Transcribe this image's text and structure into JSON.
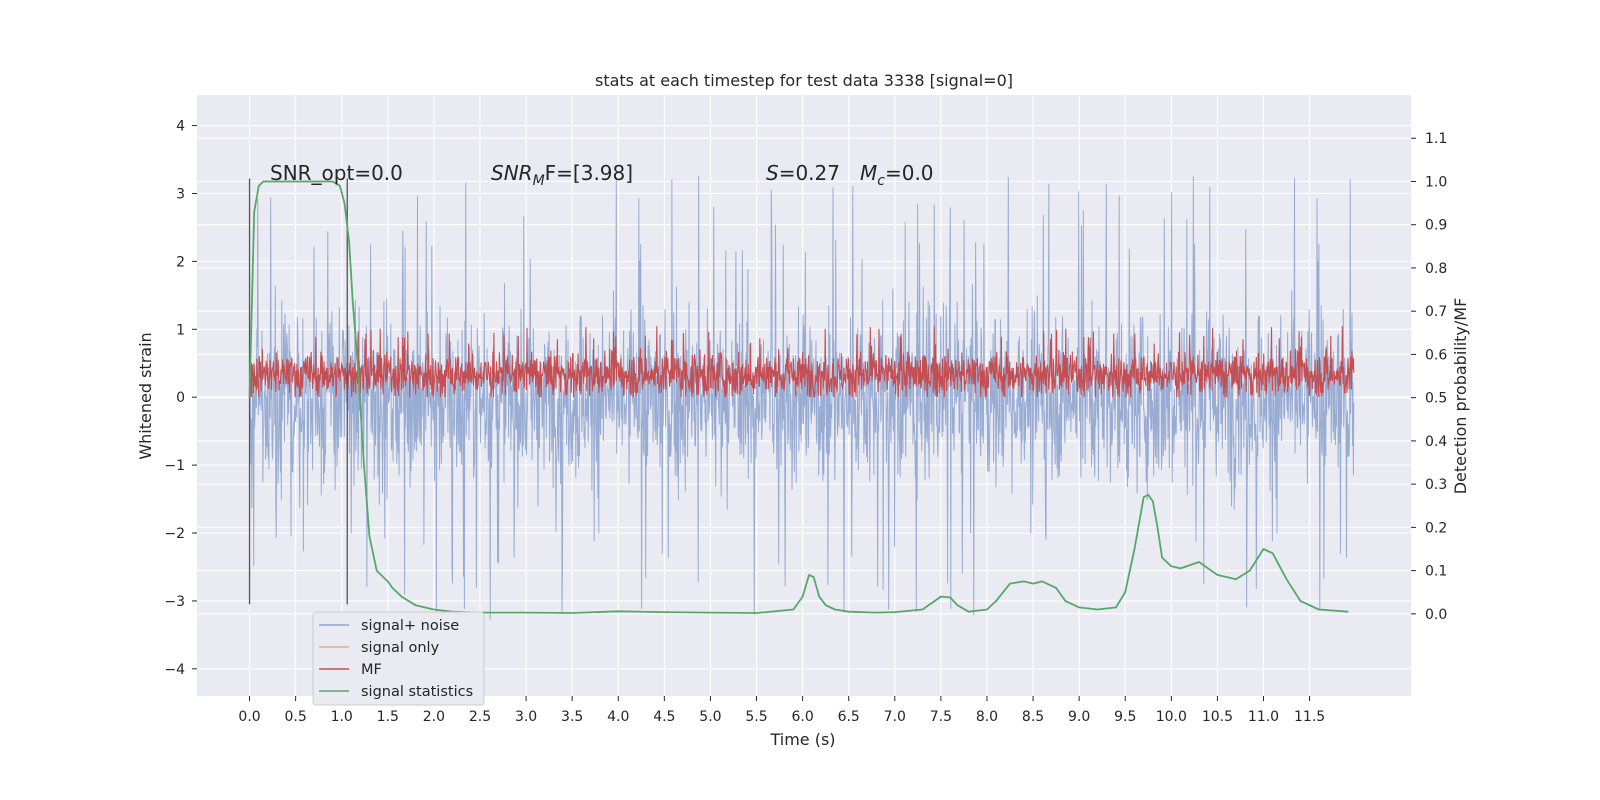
{
  "chart_data": {
    "type": "line",
    "title": "stats at each timestep for test data 3338 [signal=0]",
    "xlabel": "Time (s)",
    "ylabel": "Whitened strain",
    "ylabel_right": "Detection probability/MF",
    "xlim": [
      -0.57,
      12.6
    ],
    "ylim": [
      -4.4,
      4.45
    ],
    "ylim_right": [
      -0.19,
      1.2
    ],
    "x_ticks": [
      "0.0",
      "0.5",
      "1.0",
      "1.5",
      "2.0",
      "2.5",
      "3.0",
      "3.5",
      "4.0",
      "4.5",
      "5.0",
      "5.5",
      "6.0",
      "6.5",
      "7.0",
      "7.5",
      "8.0",
      "8.5",
      "9.0",
      "9.5",
      "10.0",
      "10.5",
      "11.0",
      "11.5"
    ],
    "y_ticks": [
      "4",
      "3",
      "2",
      "1",
      "0",
      "−1",
      "−2",
      "−3",
      "−4"
    ],
    "y_ticks_right": [
      "1.1",
      "1.0",
      "0.9",
      "0.8",
      "0.7",
      "0.6",
      "0.5",
      "0.4",
      "0.3",
      "0.2",
      "0.1",
      "0.0"
    ],
    "annotations": {
      "snr_opt": "SNR_opt=0.0",
      "snr_mf_pre": "SNR",
      "snr_mf_sub": "M",
      "snr_mf_post": "F=[3.98]",
      "s_var": "S",
      "s_val": "=0.27",
      "mc_var": "M",
      "mc_sub": "c",
      "mc_val": "=0.0"
    },
    "markers": {
      "x": [
        0.0,
        1.06
      ],
      "y_range": [
        -3.05,
        3.22
      ]
    },
    "series": [
      {
        "name": "signal+ noise",
        "color": "#8fa5cf",
        "style": "dense noise band, approx −1.8 to 1.8 with spikes to ±3.6",
        "x_range": [
          0.0,
          11.98
        ]
      },
      {
        "name": "signal only",
        "color": "#eaa98f",
        "values": []
      },
      {
        "name": "MF",
        "color": "#c44e52",
        "style": "dense band approx 0.0 to 0.75 with spikes to ~1.0",
        "x_range": [
          0.0,
          11.98
        ]
      },
      {
        "name": "signal statistics",
        "color": "#55a868",
        "axis": "right",
        "x": [
          0.0,
          0.05,
          0.1,
          0.15,
          0.2,
          0.3,
          0.5,
          0.7,
          0.9,
          0.98,
          1.03,
          1.08,
          1.12,
          1.18,
          1.24,
          1.3,
          1.38,
          1.45,
          1.5,
          1.55,
          1.65,
          1.8,
          2.0,
          2.2,
          2.5,
          3.0,
          3.5,
          4.0,
          4.5,
          5.0,
          5.5,
          5.9,
          6.0,
          6.07,
          6.12,
          6.18,
          6.25,
          6.35,
          6.5,
          6.8,
          7.0,
          7.3,
          7.5,
          7.6,
          7.68,
          7.8,
          8.0,
          8.1,
          8.25,
          8.4,
          8.5,
          8.6,
          8.75,
          8.85,
          9.0,
          9.2,
          9.4,
          9.5,
          9.6,
          9.7,
          9.75,
          9.8,
          9.85,
          9.9,
          10.0,
          10.1,
          10.3,
          10.5,
          10.7,
          10.85,
          11.0,
          11.1,
          11.25,
          11.4,
          11.6,
          11.92
        ],
        "y": [
          0.5,
          0.93,
          0.99,
          1.0,
          1.0,
          1.0,
          1.0,
          1.0,
          1.0,
          0.99,
          0.95,
          0.86,
          0.72,
          0.56,
          0.35,
          0.18,
          0.1,
          0.085,
          0.075,
          0.06,
          0.04,
          0.02,
          0.01,
          0.005,
          0.003,
          0.003,
          0.002,
          0.006,
          0.004,
          0.003,
          0.002,
          0.01,
          0.04,
          0.09,
          0.085,
          0.04,
          0.02,
          0.01,
          0.005,
          0.003,
          0.004,
          0.01,
          0.04,
          0.038,
          0.02,
          0.005,
          0.01,
          0.03,
          0.07,
          0.075,
          0.07,
          0.075,
          0.06,
          0.03,
          0.015,
          0.01,
          0.015,
          0.05,
          0.15,
          0.27,
          0.275,
          0.26,
          0.2,
          0.13,
          0.11,
          0.105,
          0.12,
          0.09,
          0.08,
          0.1,
          0.15,
          0.14,
          0.08,
          0.03,
          0.01,
          0.005
        ]
      }
    ],
    "legend": [
      "signal+ noise",
      "signal only",
      "MF",
      "signal statistics"
    ],
    "legend_position": "lower-left",
    "grid": true
  }
}
